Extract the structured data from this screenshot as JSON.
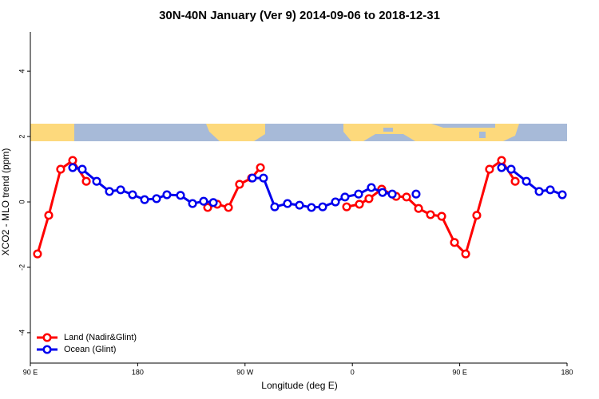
{
  "chart_data": {
    "type": "line",
    "title": "30N-40N January (Ver 9)   2014-09-06 to 2018-12-31",
    "x_label": "Longitude (deg E)",
    "y_label": "XCO2 - MLO trend (ppm)",
    "xlim": [
      90,
      540
    ],
    "xticks": [
      {
        "value": 90,
        "label": "90 E"
      },
      180,
      {
        "value": 270,
        "label": "90 W"
      },
      {
        "value": 360,
        "label": "0"
      },
      {
        "value": 450,
        "label": "90 E"
      },
      {
        "value": 540,
        "label": "180"
      }
    ],
    "ylim": [
      -4.93,
      5.2
    ],
    "yticks": [
      -4,
      -2,
      0,
      2,
      4
    ],
    "legend": "bottom-left",
    "series": [
      {
        "name": "Land (Nadir&Glint)",
        "color": "#ff0000",
        "x": [
          96,
          105.4,
          115.4,
          125.5,
          136.9,
          null,
          238.7,
          246.7,
          256.1,
          265.4,
          275.5,
          282.9,
          null,
          355.2,
          365.9,
          373.9,
          384.6,
          396.7,
          405.4,
          415.5,
          425.5,
          434.9,
          445.6,
          455,
          464.3,
          475,
          485.1,
          496.5
        ],
        "values": [
          -1.59,
          -0.41,
          1.0,
          1.27,
          0.63,
          null,
          -0.17,
          -0.07,
          -0.17,
          0.54,
          0.73,
          1.05,
          null,
          -0.15,
          -0.07,
          0.1,
          0.39,
          0.17,
          0.15,
          -0.2,
          -0.39,
          -0.44,
          -1.24,
          -1.59,
          -0.41,
          1.0,
          1.27,
          0.63
        ]
      },
      {
        "name": "Ocean (Glint)",
        "color": "#0000ee",
        "x": [
          125.5,
          133.5,
          145.6,
          156.3,
          165.7,
          175.7,
          185.8,
          195.8,
          204.5,
          215.9,
          226,
          235.3,
          243.4,
          null,
          276.2,
          285.5,
          294.9,
          305.6,
          315.7,
          325.7,
          335.1,
          345.8,
          353.8,
          365.2,
          375.9,
          385.3,
          393.4,
          null,
          413.4,
          null,
          485.1,
          493.1,
          505.9,
          516.6,
          525.9,
          536
        ],
        "values": [
          1.05,
          1.0,
          0.63,
          0.32,
          0.37,
          0.22,
          0.07,
          0.1,
          0.22,
          0.2,
          -0.05,
          0.02,
          -0.02,
          null,
          0.73,
          0.73,
          -0.15,
          -0.05,
          -0.1,
          -0.17,
          -0.15,
          0,
          0.15,
          0.24,
          0.44,
          0.29,
          0.24,
          null,
          0.24,
          null,
          1.05,
          1.0,
          0.63,
          0.32,
          0.37,
          0.22
        ]
      }
    ]
  }
}
